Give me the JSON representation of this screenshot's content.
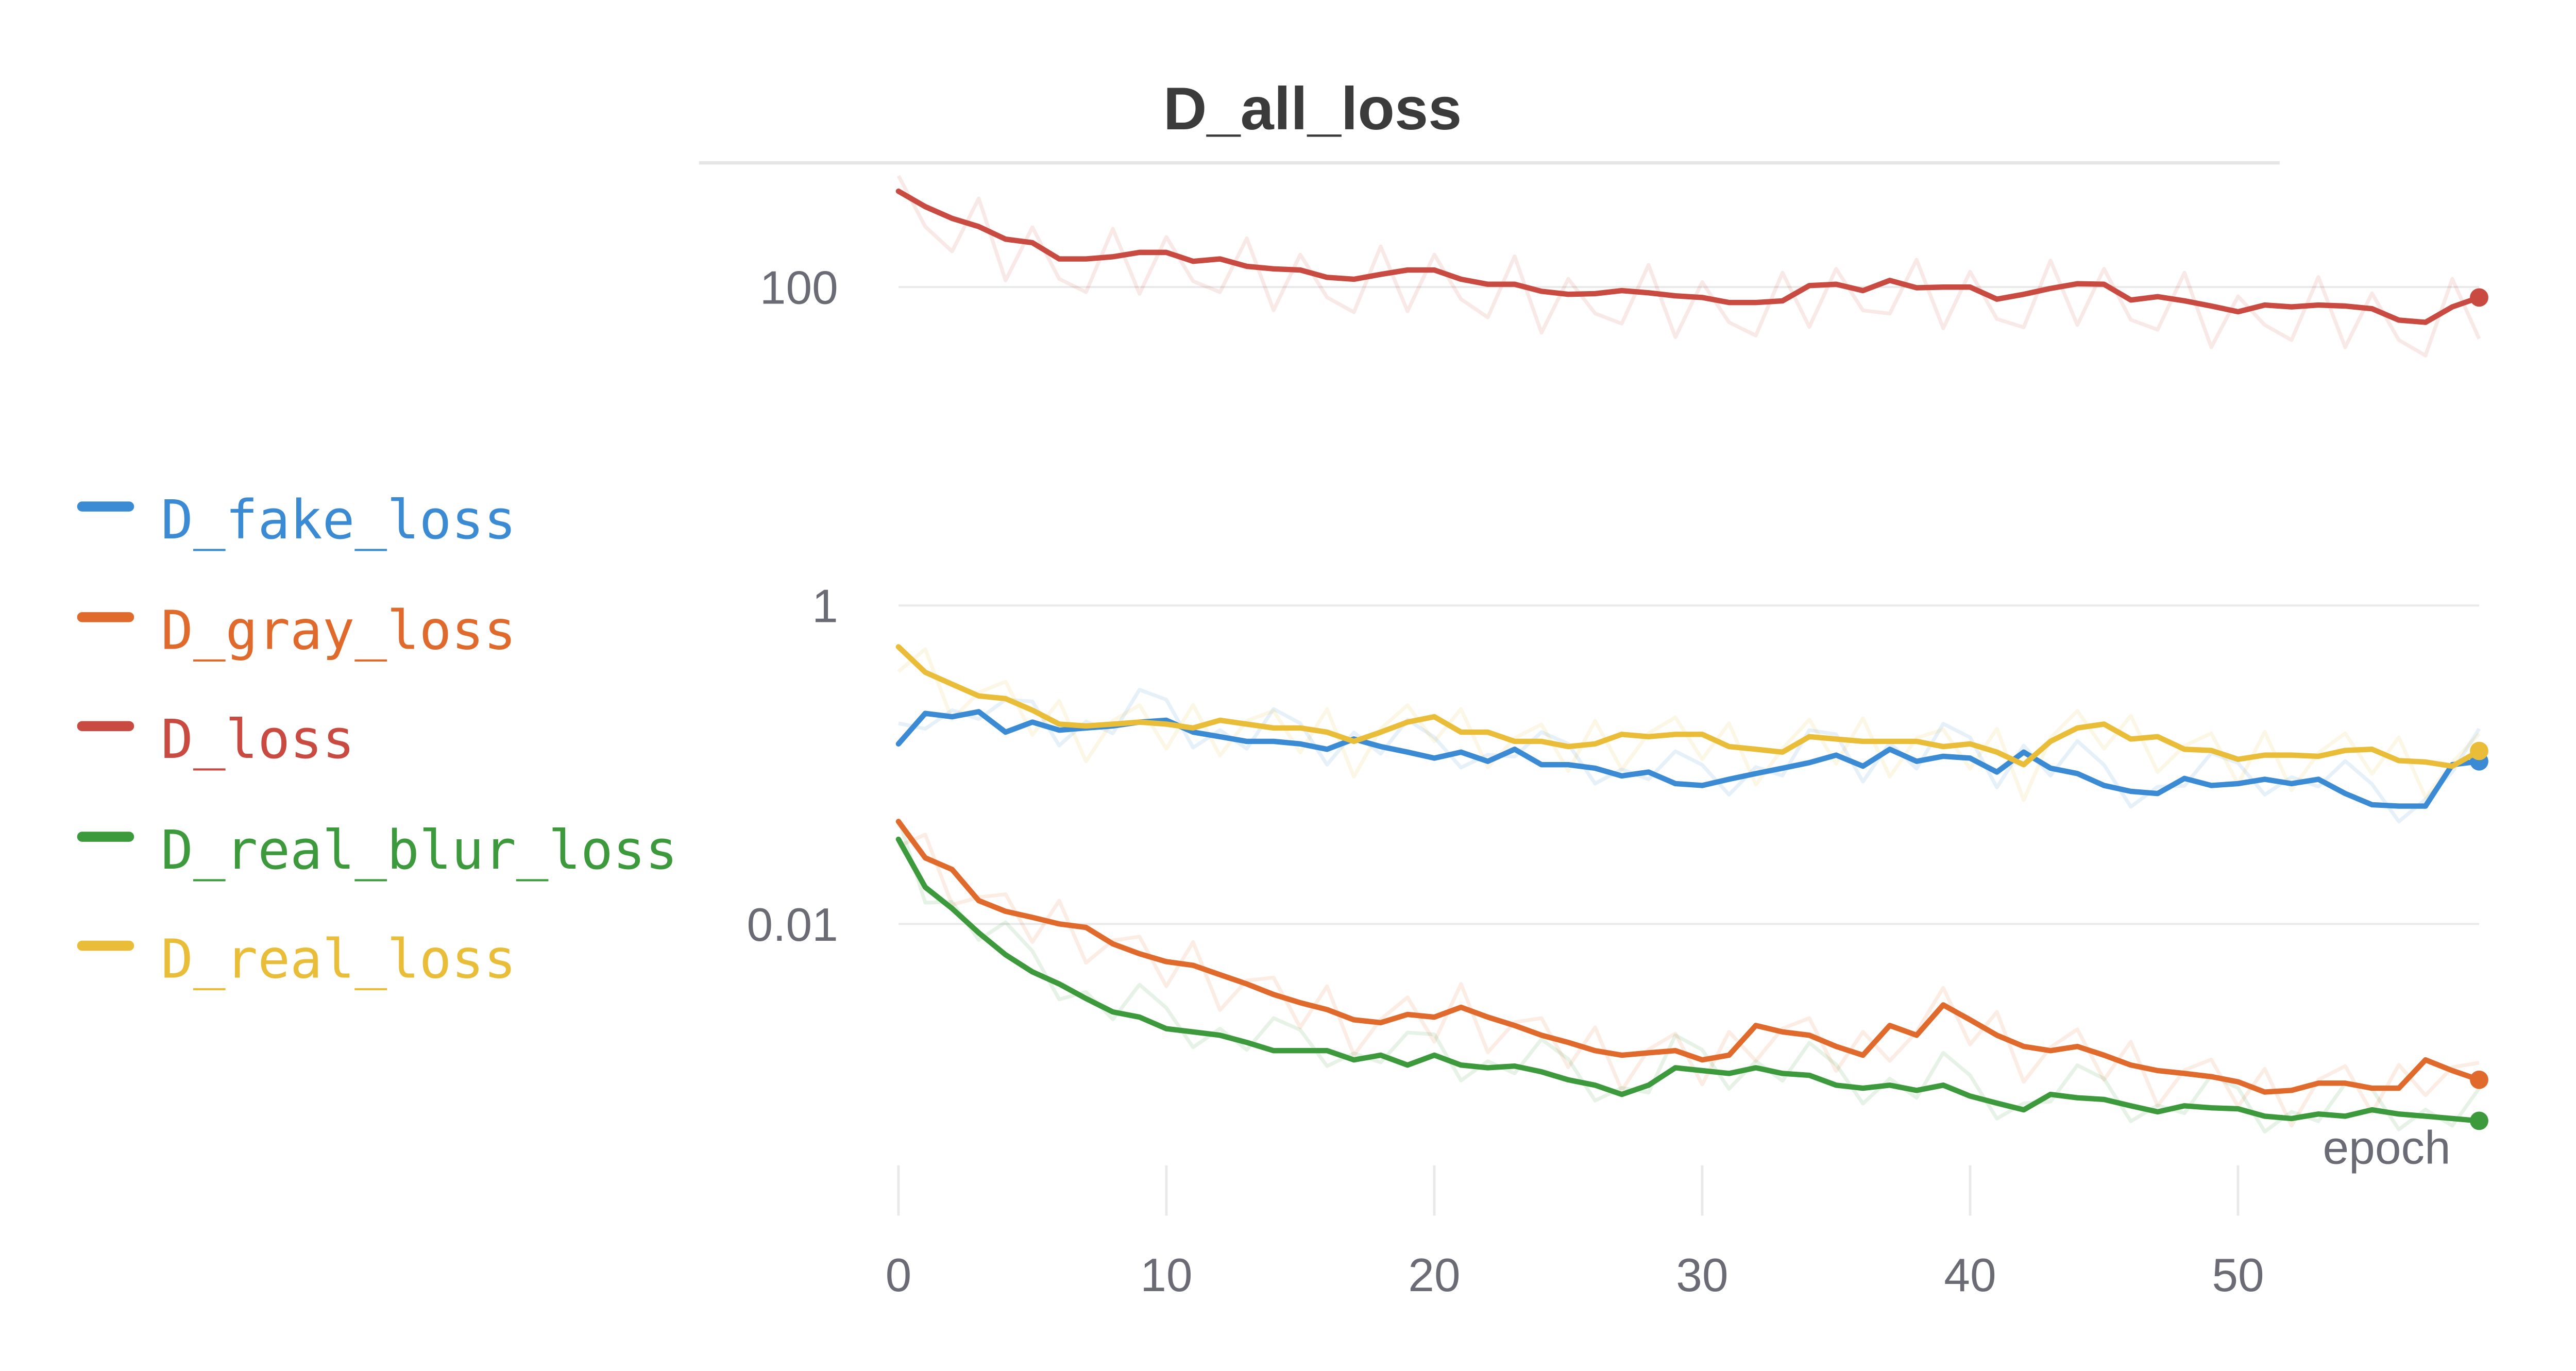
{
  "colors": {
    "D_fake_loss": "#3b8ad4",
    "D_gray_loss": "#e0692c",
    "D_loss": "#c94a40",
    "D_real_blur_loss": "#3c9a3c",
    "D_real_loss": "#e9bd38",
    "grid": "#e9e9ea",
    "text": "#6b6b75",
    "title": "#3b3b3b"
  },
  "chart_data": {
    "type": "line",
    "title": "D_all_loss",
    "xlabel": "epoch",
    "ylabel": "",
    "yscale": "log",
    "xlim": [
      0,
      59
    ],
    "ylim": [
      0.00027,
      560
    ],
    "x_ticks": [
      0,
      10,
      20,
      30,
      40,
      50
    ],
    "y_ticks": [
      {
        "value": 100,
        "label": "100"
      },
      {
        "value": 1,
        "label": "1"
      },
      {
        "value": 0.01,
        "label": "0.01"
      }
    ],
    "legend_position": "left",
    "series": [
      {
        "name": "D_fake_loss",
        "values": [
          0.135,
          0.21,
          0.2,
          0.215,
          0.16,
          0.185,
          0.165,
          0.17,
          0.175,
          0.185,
          0.19,
          0.16,
          0.15,
          0.14,
          0.14,
          0.135,
          0.125,
          0.145,
          0.13,
          0.12,
          0.11,
          0.12,
          0.105,
          0.125,
          0.1,
          0.1,
          0.095,
          0.085,
          0.09,
          0.076,
          0.074,
          0.081,
          0.088,
          0.095,
          0.103,
          0.115,
          0.098,
          0.125,
          0.105,
          0.113,
          0.11,
          0.09,
          0.12,
          0.095,
          0.088,
          0.074,
          0.068,
          0.066,
          0.082,
          0.074,
          0.076,
          0.081,
          0.076,
          0.081,
          0.066,
          0.056,
          0.055,
          0.055,
          0.1,
          0.105
        ]
      },
      {
        "name": "D_gray_loss",
        "values": [
          0.044,
          0.026,
          0.022,
          0.014,
          0.012,
          0.011,
          0.01,
          0.0095,
          0.0075,
          0.0065,
          0.0058,
          0.0055,
          0.0048,
          0.0042,
          0.0036,
          0.0032,
          0.0029,
          0.0025,
          0.0024,
          0.0027,
          0.0026,
          0.003,
          0.0026,
          0.0023,
          0.002,
          0.0018,
          0.0016,
          0.0015,
          0.00155,
          0.0016,
          0.0014,
          0.0015,
          0.0023,
          0.0021,
          0.002,
          0.0017,
          0.0015,
          0.0023,
          0.002,
          0.0031,
          0.0025,
          0.002,
          0.0017,
          0.0016,
          0.0017,
          0.0015,
          0.0013,
          0.0012,
          0.00115,
          0.0011,
          0.00102,
          0.00088,
          0.0009,
          0.001,
          0.001,
          0.00093,
          0.00093,
          0.0014,
          0.0012,
          0.00105
        ]
      },
      {
        "name": "D_loss",
        "values": [
          400,
          320,
          270,
          240,
          200,
          190,
          150,
          150,
          155,
          165,
          165,
          145,
          150,
          135,
          130,
          128,
          115,
          112,
          120,
          128,
          128,
          112,
          104,
          104,
          94,
          90,
          91,
          95,
          92,
          88,
          86,
          80,
          80,
          82,
          102,
          104,
          95,
          110,
          99,
          100,
          100,
          84,
          90,
          98,
          105,
          104,
          83,
          87,
          82,
          76,
          70,
          77,
          75,
          77,
          76,
          73,
          62,
          60,
          75,
          86
        ]
      },
      {
        "name": "D_real_blur_loss",
        "values": [
          0.034,
          0.017,
          0.0125,
          0.0088,
          0.0064,
          0.005,
          0.0042,
          0.0034,
          0.0028,
          0.0026,
          0.0022,
          0.0021,
          0.002,
          0.0018,
          0.0016,
          0.0016,
          0.0016,
          0.0014,
          0.0015,
          0.0013,
          0.0015,
          0.0013,
          0.00125,
          0.00128,
          0.00118,
          0.00105,
          0.00097,
          0.00085,
          0.00097,
          0.00125,
          0.0012,
          0.00115,
          0.00125,
          0.00115,
          0.00112,
          0.00097,
          0.00093,
          0.00097,
          0.0009,
          0.00097,
          0.00083,
          0.00075,
          0.00068,
          0.00085,
          0.00081,
          0.00079,
          0.00072,
          0.00066,
          0.00072,
          0.0007,
          0.00069,
          0.00062,
          0.0006,
          0.00064,
          0.00062,
          0.00068,
          0.00064,
          0.00062,
          0.0006,
          0.00058
        ]
      },
      {
        "name": "D_real_loss",
        "values": [
          0.55,
          0.38,
          0.32,
          0.27,
          0.26,
          0.22,
          0.18,
          0.175,
          0.18,
          0.185,
          0.18,
          0.17,
          0.19,
          0.18,
          0.17,
          0.17,
          0.16,
          0.14,
          0.16,
          0.185,
          0.2,
          0.16,
          0.16,
          0.14,
          0.14,
          0.13,
          0.135,
          0.155,
          0.15,
          0.155,
          0.155,
          0.13,
          0.125,
          0.12,
          0.15,
          0.145,
          0.14,
          0.14,
          0.14,
          0.13,
          0.135,
          0.12,
          0.1,
          0.14,
          0.17,
          0.18,
          0.145,
          0.15,
          0.125,
          0.123,
          0.108,
          0.115,
          0.115,
          0.113,
          0.123,
          0.125,
          0.106,
          0.104,
          0.098,
          0.122
        ]
      }
    ]
  }
}
